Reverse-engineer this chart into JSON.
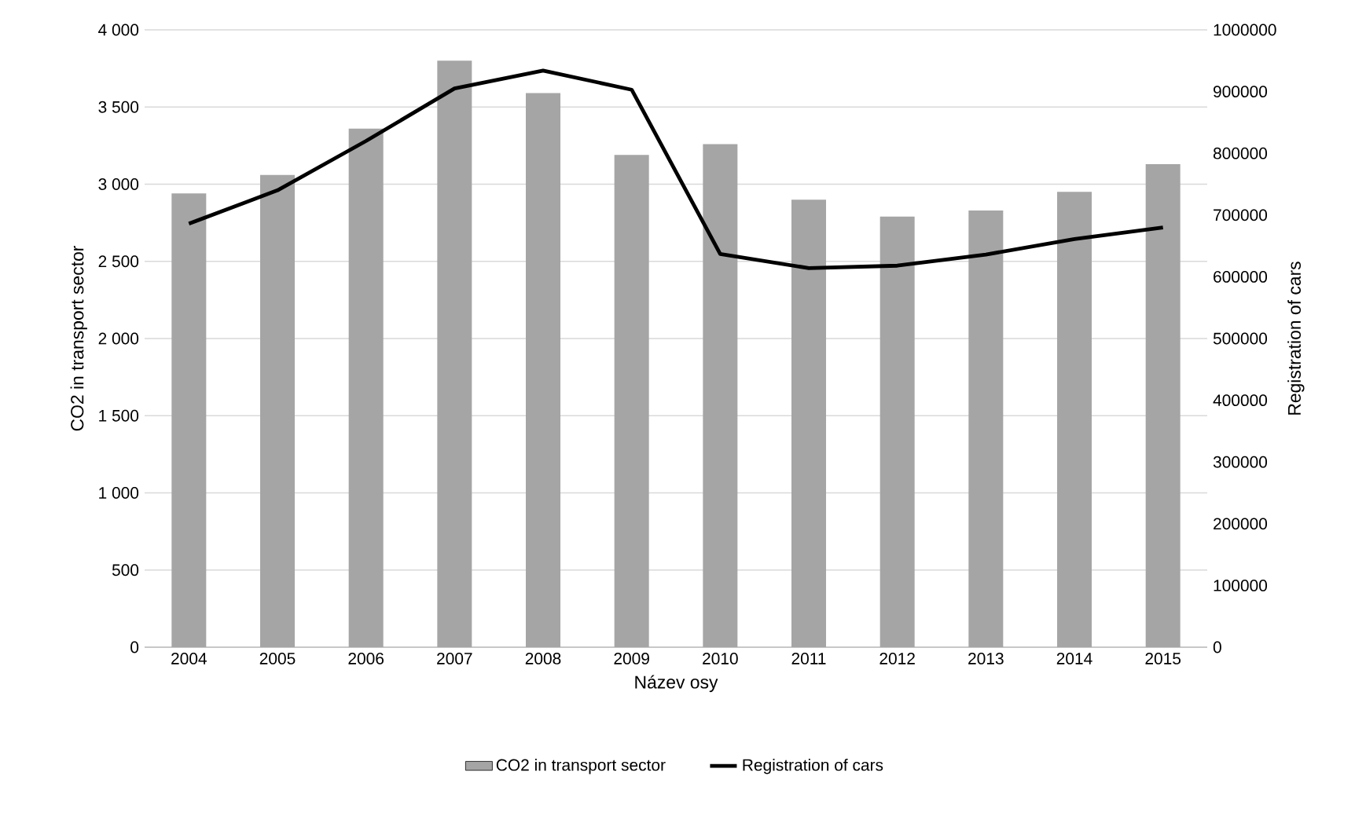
{
  "chart_data": {
    "type": "bar",
    "xlabel": "Název osy",
    "ylabel": "CO2 in transport sector",
    "y2label": "Registration of cars",
    "categories": [
      "2004",
      "2005",
      "2006",
      "2007",
      "2008",
      "2009",
      "2010",
      "2011",
      "2012",
      "2013",
      "2014",
      "2015"
    ],
    "series": [
      {
        "name": "CO2 in transport sector",
        "color": "#a5a5a5",
        "values": [
          2940,
          3060,
          3360,
          3800,
          3590,
          3190,
          3260,
          2900,
          2790,
          2830,
          2950,
          3130
        ]
      },
      {
        "name": "Registration of cars",
        "type": "line",
        "axis": "y2",
        "color": "#000000",
        "values": [
          686000,
          740000,
          820000,
          905000,
          934000,
          903000,
          637000,
          614000,
          618000,
          636000,
          661000,
          680000
        ]
      }
    ],
    "ylim": [
      0,
      4000
    ],
    "yticks": [
      0,
      500,
      {
        "value": 1000,
        "label": "1 000"
      },
      {
        "value": 1500,
        "label": "1 500"
      },
      {
        "value": 2000,
        "label": "2 000"
      },
      {
        "value": 2500,
        "label": "2 500"
      },
      {
        "value": 3000,
        "label": "3 000"
      },
      {
        "value": 3500,
        "label": "3 500"
      },
      {
        "value": 4000,
        "label": "4 000"
      }
    ],
    "y2lim": [
      0,
      1000000
    ],
    "y2ticks": [
      0,
      100000,
      200000,
      300000,
      400000,
      500000,
      600000,
      700000,
      800000,
      900000,
      1000000
    ],
    "grid": "y",
    "legend": "bottom",
    "marker": "none",
    "line_style": "solid"
  }
}
